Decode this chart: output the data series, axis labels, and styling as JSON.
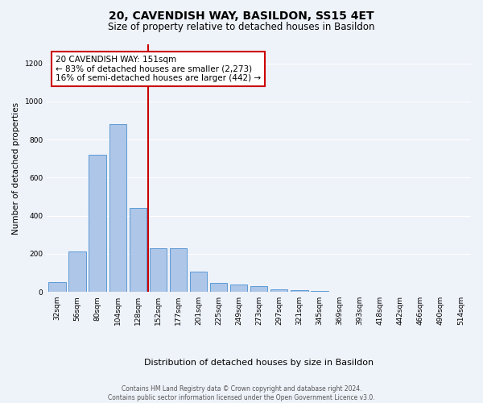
{
  "title": "20, CAVENDISH WAY, BASILDON, SS15 4ET",
  "subtitle": "Size of property relative to detached houses in Basildon",
  "xlabel": "Distribution of detached houses by size in Basildon",
  "ylabel": "Number of detached properties",
  "categories": [
    "32sqm",
    "56sqm",
    "80sqm",
    "104sqm",
    "128sqm",
    "152sqm",
    "177sqm",
    "201sqm",
    "225sqm",
    "249sqm",
    "273sqm",
    "297sqm",
    "321sqm",
    "345sqm",
    "369sqm",
    "393sqm",
    "418sqm",
    "442sqm",
    "466sqm",
    "490sqm",
    "514sqm"
  ],
  "bar_heights": [
    50,
    210,
    720,
    880,
    440,
    230,
    230,
    105,
    45,
    40,
    30,
    15,
    8,
    3,
    2,
    1,
    1,
    0,
    0,
    0,
    0
  ],
  "bar_color": "#aec6e8",
  "bar_edge_color": "#5b9bd5",
  "vline_color": "#cc0000",
  "ylim": [
    0,
    1300
  ],
  "yticks": [
    0,
    200,
    400,
    600,
    800,
    1000,
    1200
  ],
  "annotation_text": "20 CAVENDISH WAY: 151sqm\n← 83% of detached houses are smaller (2,273)\n16% of semi-detached houses are larger (442) →",
  "annotation_box_color": "#ffffff",
  "annotation_box_edge": "#cc0000",
  "footer_line1": "Contains HM Land Registry data © Crown copyright and database right 2024.",
  "footer_line2": "Contains public sector information licensed under the Open Government Licence v3.0.",
  "background_color": "#eef2f9",
  "grid_color": "#ffffff",
  "title_fontsize": 10,
  "subtitle_fontsize": 8.5,
  "ylabel_fontsize": 7.5,
  "xlabel_fontsize": 8,
  "tick_fontsize": 6.5,
  "annotation_fontsize": 7.5,
  "footer_fontsize": 5.5
}
